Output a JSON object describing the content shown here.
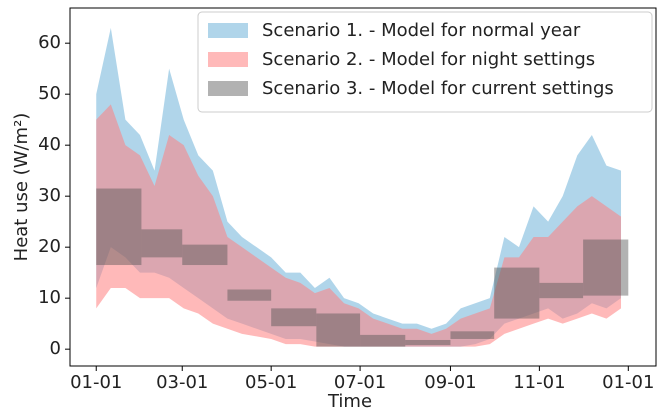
{
  "chart_data": {
    "type": "range",
    "x_label": "Time",
    "y_label": "Heat use (W/m²)",
    "xlim": [
      -18,
      384
    ],
    "ylim": [
      -3.3,
      66.9
    ],
    "xticks": [
      {
        "value": 0,
        "label": "01-01"
      },
      {
        "value": 59,
        "label": "03-01"
      },
      {
        "value": 120,
        "label": "05-01"
      },
      {
        "value": 181,
        "label": "07-01"
      },
      {
        "value": 243,
        "label": "09-01"
      },
      {
        "value": 304,
        "label": "11-01"
      },
      {
        "value": 365,
        "label": "01-01"
      }
    ],
    "yticks": [
      0,
      10,
      20,
      30,
      40,
      50,
      60
    ],
    "legend": "upper right",
    "series": [
      {
        "name": "Scenario 1. - Model for normal year",
        "color": "#6fb2d9",
        "style": "band",
        "x": [
          0,
          10,
          20,
          30,
          40,
          50,
          60,
          70,
          80,
          90,
          100,
          110,
          120,
          130,
          140,
          150,
          160,
          170,
          180,
          190,
          200,
          210,
          220,
          230,
          240,
          250,
          260,
          270,
          280,
          290,
          300,
          310,
          320,
          330,
          340,
          350,
          360
        ],
        "upper": [
          50,
          63,
          45,
          42,
          35,
          55,
          45,
          38,
          35,
          25,
          22,
          20,
          18,
          15,
          15,
          12,
          14,
          10,
          9,
          7,
          6,
          5,
          5,
          4,
          5,
          8,
          9,
          10,
          22,
          20,
          28,
          25,
          30,
          38,
          42,
          36,
          35
        ],
        "lower": [
          12,
          20,
          18,
          15,
          15,
          14,
          12,
          10,
          8,
          6,
          5,
          4,
          3,
          2,
          2,
          1.5,
          1,
          0.5,
          0.5,
          0.5,
          0.5,
          0.5,
          0.5,
          0.5,
          0.5,
          0.5,
          1,
          2,
          5,
          6,
          7,
          8,
          6,
          7,
          9,
          8,
          10
        ]
      },
      {
        "name": "Scenario 2. - Model for night settings",
        "color": "#ff7f7f",
        "style": "band",
        "x": [
          0,
          10,
          20,
          30,
          40,
          50,
          60,
          70,
          80,
          90,
          100,
          110,
          120,
          130,
          140,
          150,
          160,
          170,
          180,
          190,
          200,
          210,
          220,
          230,
          240,
          250,
          260,
          270,
          280,
          290,
          300,
          310,
          320,
          330,
          340,
          350,
          360
        ],
        "upper": [
          45,
          48,
          40,
          38,
          32,
          42,
          40,
          34,
          30,
          22,
          20,
          18,
          16,
          14,
          13,
          11,
          12,
          9,
          8,
          6,
          5,
          4,
          4,
          3,
          4,
          6,
          7,
          8,
          18,
          18,
          22,
          22,
          25,
          28,
          30,
          28,
          26
        ],
        "lower": [
          8,
          12,
          12,
          10,
          10,
          10,
          8,
          7,
          5,
          4,
          3,
          2.5,
          2,
          1,
          1,
          0.5,
          0.5,
          0.5,
          0.5,
          0.5,
          0.5,
          0.5,
          0.5,
          0.5,
          0.5,
          0.5,
          0.5,
          1,
          3,
          4,
          5,
          6,
          5,
          6,
          7,
          6,
          8
        ]
      },
      {
        "name": "Scenario 3. - Model for current settings",
        "color": "#555555",
        "style": "steps",
        "bins": [
          0,
          31,
          59,
          90,
          120,
          151,
          181,
          212,
          243,
          273,
          304,
          334,
          365
        ],
        "upper": [
          31.5,
          23.5,
          20.5,
          11.7,
          8,
          7,
          2.8,
          1.8,
          3.5,
          16,
          13,
          21.5
        ],
        "lower": [
          16.5,
          18,
          16.5,
          9.5,
          4.5,
          0.5,
          0.5,
          0.8,
          2,
          6,
          10,
          10.5
        ]
      }
    ]
  }
}
